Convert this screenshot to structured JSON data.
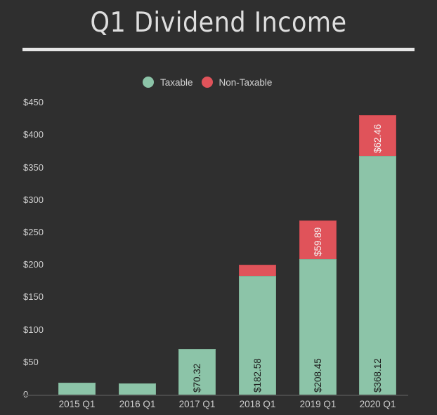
{
  "chart_data": {
    "type": "bar",
    "stacked": true,
    "title": "Q1 Dividend Income",
    "xlabel": "",
    "ylabel": "",
    "ylim": [
      0,
      450
    ],
    "yticks": [
      "0",
      "$50",
      "$100",
      "$150",
      "$200",
      "$250",
      "$300",
      "$350",
      "$400",
      "$450"
    ],
    "grid": false,
    "legend_position": "top",
    "categories": [
      "2015 Q1",
      "2016 Q1",
      "2017 Q1",
      "2018 Q1",
      "2019 Q1",
      "2020 Q1"
    ],
    "series": [
      {
        "name": "Taxable",
        "color": "#8cc4a8",
        "values": [
          18.4,
          17.3,
          70.32,
          182.58,
          208.45,
          368.12
        ],
        "data_labels": [
          "",
          "",
          "$70.32",
          "$182.58",
          "$208.45",
          "$368.12"
        ]
      },
      {
        "name": "Non-Taxable",
        "color": "#e0535a",
        "values": [
          0,
          0,
          0,
          17.3,
          59.89,
          62.46
        ],
        "data_labels": [
          "",
          "",
          "",
          "",
          "$59.89",
          "$62.46"
        ]
      }
    ]
  },
  "legend": [
    {
      "label": "Taxable",
      "color": "#8cc4a8"
    },
    {
      "label": "Non-Taxable",
      "color": "#e0535a"
    }
  ]
}
